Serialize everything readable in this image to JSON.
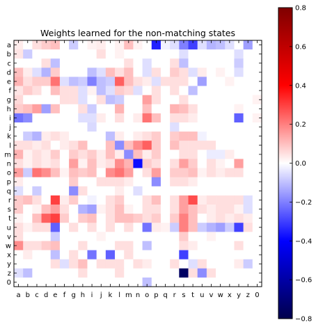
{
  "chart_data": {
    "type": "heatmap",
    "title": "Weights learned for the non-matching states",
    "x_categories": [
      "a",
      "b",
      "c",
      "d",
      "e",
      "f",
      "g",
      "h",
      "i",
      "j",
      "k",
      "l",
      "m",
      "n",
      "o",
      "p",
      "q",
      "r",
      "s",
      "t",
      "u",
      "v",
      "w",
      "x",
      "y",
      "z",
      "0"
    ],
    "y_categories": [
      "a",
      "b",
      "c",
      "d",
      "e",
      "f",
      "g",
      "h",
      "i",
      "j",
      "k",
      "l",
      "m",
      "n",
      "o",
      "p",
      "q",
      "r",
      "s",
      "t",
      "u",
      "v",
      "w",
      "x",
      "y",
      "z",
      "0"
    ],
    "values": [
      [
        0.03,
        0,
        0.05,
        0.08,
        0.1,
        0,
        -0.08,
        0,
        0.02,
        0.03,
        0,
        0.02,
        0.1,
        0.02,
        0,
        -0.35,
        -0.02,
        -0.05,
        -0.2,
        -0.3,
        -0.05,
        -0.12,
        -0.1,
        -0.05,
        0,
        -0.15,
        0
      ],
      [
        0.04,
        -0.08,
        0,
        0,
        0,
        0,
        0,
        0,
        0,
        0.05,
        0,
        0.02,
        0,
        0,
        0,
        0,
        0,
        0,
        -0.05,
        0,
        0,
        0,
        0,
        0,
        -0.05,
        0,
        0
      ],
      [
        0,
        0,
        0,
        0.05,
        -0.1,
        0,
        0,
        0,
        0,
        0,
        0,
        0,
        0.05,
        0,
        -0.05,
        0,
        0,
        0.05,
        -0.1,
        0,
        0,
        0,
        0,
        0,
        -0.08,
        0,
        0
      ],
      [
        0.1,
        0.03,
        -0.05,
        -0.12,
        0.08,
        0,
        0,
        0,
        -0.1,
        -0.05,
        0.1,
        0.05,
        0.1,
        0,
        -0.05,
        0.05,
        0,
        0.08,
        0.05,
        -0.05,
        0.03,
        0,
        0.02,
        0,
        -0.05,
        0,
        0
      ],
      [
        0.12,
        0.05,
        0.08,
        0.08,
        0.22,
        -0.05,
        -0.1,
        -0.08,
        -0.2,
        -0.1,
        -0.08,
        0.25,
        0.1,
        0.05,
        0.03,
        -0.05,
        0.05,
        0.05,
        0.05,
        0,
        -0.15,
        0,
        0,
        0.02,
        0,
        0,
        0
      ],
      [
        0.04,
        0.08,
        0.05,
        0,
        0.1,
        0.05,
        0.05,
        -0.05,
        0.02,
        -0.1,
        -0.05,
        0.08,
        0.06,
        -0.05,
        0,
        0.05,
        0,
        0.05,
        0,
        -0.1,
        0,
        0,
        0,
        0,
        0,
        0,
        0
      ],
      [
        0.06,
        0,
        0,
        0,
        0,
        0.05,
        0.05,
        -0.05,
        0,
        0.05,
        -0.1,
        -0.08,
        0,
        0,
        0.15,
        0.05,
        0,
        0,
        0.05,
        0,
        0,
        0,
        0,
        0,
        0,
        0,
        0.02
      ],
      [
        0.08,
        0.1,
        0.15,
        -0.15,
        0.1,
        0,
        0,
        0.05,
        -0.08,
        0,
        0,
        0.12,
        0,
        0,
        0.1,
        0,
        0,
        0.12,
        0.1,
        0.05,
        0,
        0,
        0,
        0,
        0.02,
        0,
        0
      ],
      [
        -0.22,
        -0.18,
        0,
        0,
        0,
        0,
        0,
        -0.05,
        -0.05,
        0.03,
        0,
        0.05,
        0,
        0.03,
        0.22,
        0.1,
        0,
        0.05,
        0.05,
        0.03,
        0,
        0,
        0,
        0,
        -0.25,
        0,
        0.02
      ],
      [
        0,
        0,
        0,
        0,
        0,
        0,
        0,
        0,
        -0.06,
        0,
        0,
        0,
        0,
        0,
        0,
        0,
        0,
        -0.05,
        0,
        0,
        0,
        0,
        0,
        0,
        0,
        0,
        0
      ],
      [
        0,
        -0.08,
        -0.12,
        0.03,
        0.05,
        0.03,
        0,
        0,
        0,
        0,
        -0.1,
        0.03,
        0,
        0.03,
        0.05,
        0.08,
        0,
        0.08,
        0.1,
        0.1,
        -0.02,
        0,
        0,
        0,
        0,
        0,
        0
      ],
      [
        0.05,
        0.05,
        0.03,
        0.05,
        0,
        0.03,
        0.05,
        0.1,
        0,
        0,
        0.1,
        -0.18,
        0.1,
        0.18,
        0.25,
        0.08,
        0,
        0.1,
        0.05,
        0.05,
        0.05,
        0.05,
        0,
        0,
        0,
        0,
        0
      ],
      [
        0.12,
        0.02,
        0.05,
        0.03,
        0.08,
        0,
        0.08,
        0.05,
        0.08,
        0.03,
        0.1,
        0.03,
        -0.18,
        0.1,
        0.03,
        0.08,
        0,
        0,
        0.05,
        0.05,
        0,
        -0.03,
        -0.03,
        0.03,
        0,
        0,
        0
      ],
      [
        0.05,
        0.02,
        0.05,
        0.03,
        0.05,
        0,
        0.15,
        0.02,
        0.1,
        0.03,
        0.05,
        0.18,
        0.12,
        -0.38,
        0.08,
        0.05,
        0,
        0.05,
        0.15,
        0.08,
        0,
        0.05,
        0.02,
        0,
        0.15,
        0,
        0
      ],
      [
        0.15,
        -0.08,
        0.22,
        0.18,
        0.1,
        0.02,
        0.1,
        0.08,
        0.1,
        0,
        0.18,
        0.22,
        0.15,
        0,
        0.05,
        0.15,
        0,
        0.08,
        0.08,
        0.1,
        0.02,
        0.05,
        0.03,
        0.05,
        0.05,
        0,
        0
      ],
      [
        0.03,
        0,
        0,
        0,
        0,
        0,
        0.08,
        0,
        0,
        0.05,
        0.05,
        0.05,
        0.03,
        0,
        0,
        -0.18,
        0,
        0.05,
        0.05,
        0.03,
        0,
        0,
        0,
        0,
        0,
        0,
        0
      ],
      [
        -0.05,
        0,
        -0.08,
        0,
        0,
        0,
        -0.18,
        0.05,
        0,
        0,
        0,
        0.03,
        0,
        -0.05,
        0,
        0,
        0,
        0,
        0,
        0,
        0,
        0,
        0,
        0,
        0,
        0,
        0
      ],
      [
        0.08,
        0.1,
        0.05,
        0,
        0.3,
        0.03,
        0.08,
        0,
        -0.02,
        0,
        0.05,
        0.08,
        0,
        0,
        0.05,
        0.1,
        0,
        0.05,
        0.15,
        0.28,
        0.03,
        0.05,
        0.05,
        0.05,
        0.05,
        -0.05,
        0
      ],
      [
        0.08,
        0,
        0.02,
        0.1,
        0.15,
        0.05,
        0,
        -0.12,
        -0.15,
        0.02,
        0.05,
        0.1,
        0.02,
        0,
        0.05,
        0.05,
        0,
        0.05,
        0.15,
        0.1,
        0.05,
        0.03,
        0.05,
        0.05,
        0.02,
        -0.05,
        0
      ],
      [
        0.02,
        0,
        0.1,
        0.25,
        0.3,
        0.08,
        0,
        0.08,
        0.1,
        0,
        0.05,
        0.1,
        0.1,
        0.08,
        0.05,
        0.08,
        0,
        0.08,
        0.2,
        0.1,
        0,
        0.03,
        0.05,
        0.03,
        0.05,
        0.03,
        0
      ],
      [
        0.05,
        0.02,
        0.05,
        0.05,
        -0.25,
        0,
        0.05,
        0,
        0.05,
        0,
        0.05,
        0,
        0.05,
        0,
        -0.22,
        0.03,
        0.02,
        -0.08,
        0.2,
        0.1,
        -0.08,
        -0.12,
        -0.15,
        -0.08,
        -0.3,
        0.05,
        0
      ],
      [
        0.05,
        0,
        0,
        0,
        -0.08,
        0,
        0,
        0,
        0,
        0.02,
        0,
        0,
        0,
        0,
        0,
        0,
        0,
        0,
        0.08,
        0,
        0,
        0.02,
        0,
        0,
        0,
        0,
        0
      ],
      [
        0.18,
        0.05,
        0.05,
        0.08,
        0.1,
        0,
        0,
        0.05,
        0,
        0,
        0,
        0.05,
        0.05,
        0,
        -0.1,
        0,
        0,
        0,
        0.05,
        0.03,
        0,
        0,
        0,
        0,
        0.05,
        0,
        0
      ],
      [
        0,
        0.03,
        0,
        0,
        -0.1,
        0,
        0.05,
        0,
        -0.22,
        0,
        -0.25,
        0,
        0.05,
        0,
        0,
        0,
        0,
        0,
        -0.3,
        0,
        0,
        0,
        0,
        0,
        0,
        0,
        0
      ],
      [
        0,
        0,
        0,
        0,
        0.05,
        -0.05,
        0.05,
        0.1,
        0,
        0.05,
        0.05,
        0.05,
        0,
        0.05,
        0.03,
        0,
        0,
        0.05,
        0,
        -0.05,
        0.05,
        0,
        0,
        0,
        0.03,
        -0.08,
        0
      ],
      [
        -0.05,
        -0.1,
        0,
        0,
        0,
        0,
        0,
        0.05,
        0,
        0,
        0,
        0.05,
        0,
        0,
        0,
        0,
        0,
        0,
        -0.75,
        0.05,
        -0.18,
        0.05,
        0,
        0,
        0,
        0,
        0
      ],
      [
        0,
        0,
        0,
        0,
        0,
        0,
        0,
        0,
        0,
        0,
        0,
        0,
        0,
        0,
        -0.1,
        0,
        0,
        0,
        0,
        0,
        0,
        0,
        0,
        0,
        0,
        0,
        0
      ]
    ],
    "colorbar": {
      "colormap": "seismic",
      "min": -0.8,
      "max": 0.8,
      "ticks": [
        0.8,
        0.6,
        0.4,
        0.2,
        0.0,
        -0.2,
        -0.4,
        -0.6,
        -0.8
      ],
      "tick_labels": [
        "0.8",
        "0.6",
        "0.4",
        "0.2",
        "0.0",
        "−0.2",
        "−0.4",
        "−0.6",
        "−0.8"
      ]
    },
    "grid": false
  }
}
